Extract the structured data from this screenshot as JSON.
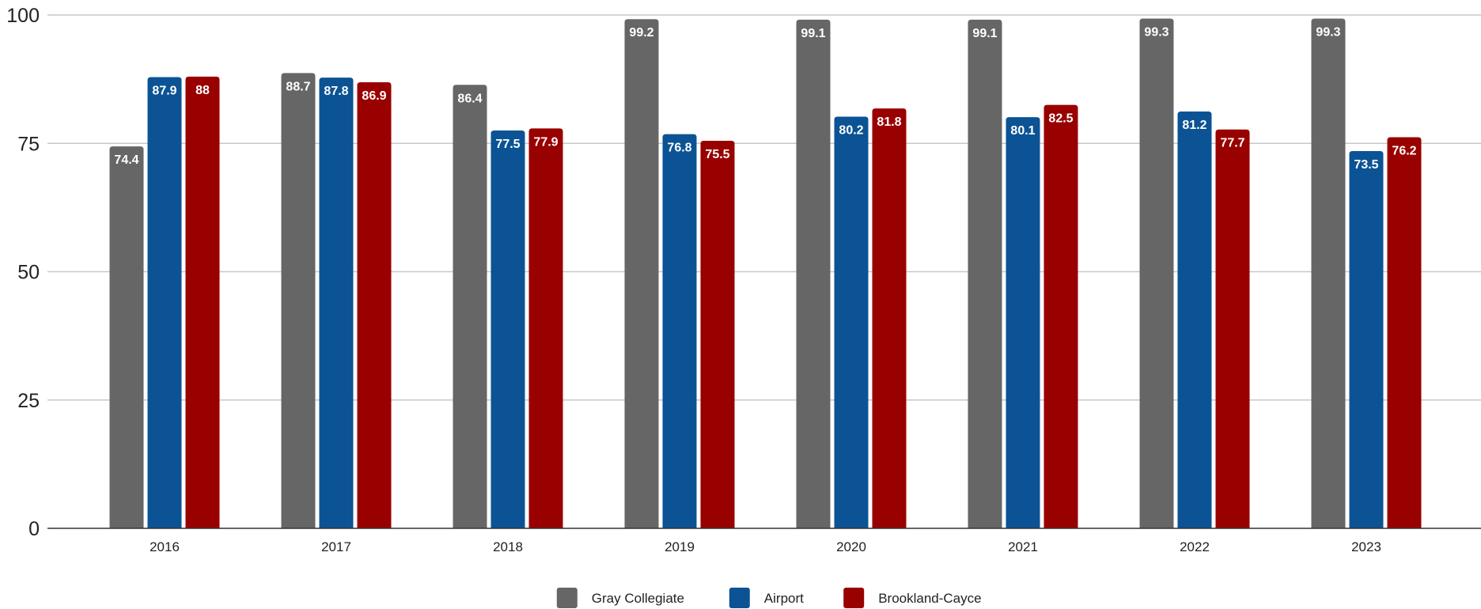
{
  "chart_data": {
    "type": "bar",
    "title": "",
    "xlabel": "",
    "ylabel": "",
    "categories": [
      "2016",
      "2017",
      "2018",
      "2019",
      "2020",
      "2021",
      "2022",
      "2023"
    ],
    "series": [
      {
        "name": "Gray Collegiate",
        "color": "#666666",
        "values": [
          74.4,
          88.7,
          86.4,
          99.2,
          99.1,
          99.1,
          99.3,
          99.3
        ],
        "labels": [
          "74.4",
          "88.7",
          "86.4",
          "99.2",
          "99.1",
          "99.1",
          "99.3",
          "99.3"
        ]
      },
      {
        "name": "Airport",
        "color": "#0b5394",
        "values": [
          87.9,
          87.8,
          77.5,
          76.8,
          80.2,
          80.1,
          81.2,
          73.5
        ],
        "labels": [
          "87.9",
          "87.8",
          "77.5",
          "76.8",
          "80.2",
          "80.1",
          "81.2",
          "73.5"
        ]
      },
      {
        "name": "Brookland-Cayce",
        "color": "#990000",
        "values": [
          88,
          86.9,
          77.9,
          75.5,
          81.8,
          82.5,
          77.7,
          76.2
        ],
        "labels": [
          "88",
          "86.9",
          "77.9",
          "75.5",
          "81.8",
          "82.5",
          "77.7",
          "76.2"
        ]
      }
    ],
    "ylim": [
      0,
      100
    ],
    "yticks": [
      0,
      25,
      50,
      75,
      100
    ],
    "ytick_labels": [
      "0",
      "25",
      "50",
      "75",
      "100"
    ],
    "grid": true,
    "legend": "bottom-center"
  }
}
